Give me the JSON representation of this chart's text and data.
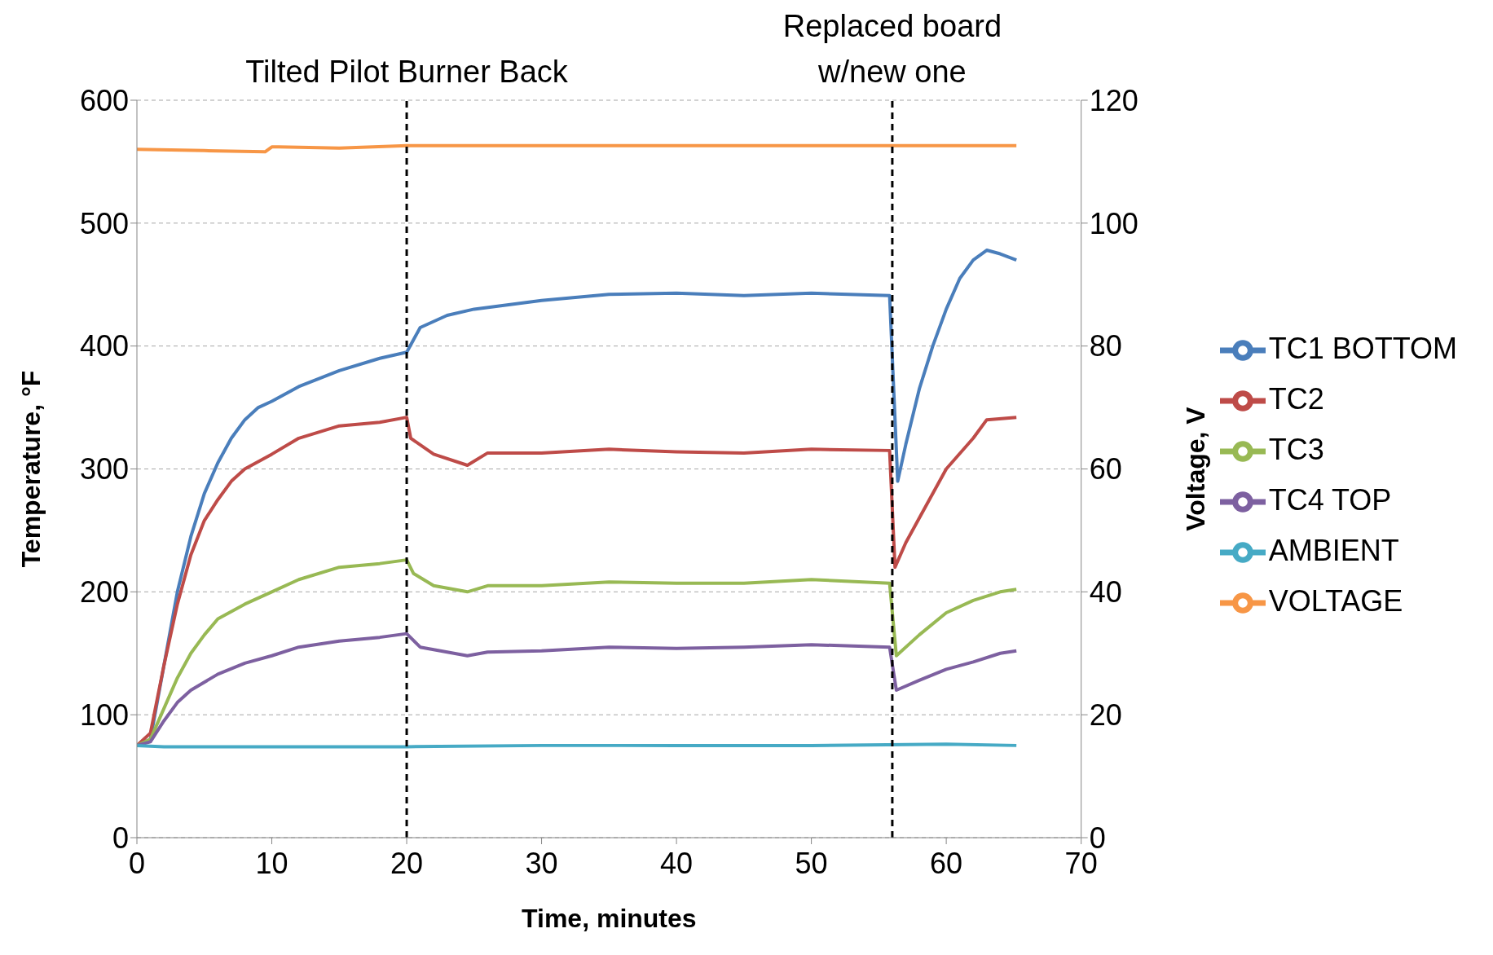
{
  "chart_data": {
    "type": "line",
    "xlabel": "Time, minutes",
    "ylabel": "Temperature, °F",
    "y2label": "Voltage, V",
    "xlim": [
      0,
      70
    ],
    "xticks": [
      0,
      10,
      20,
      30,
      40,
      50,
      60,
      70
    ],
    "ylim": [
      0,
      600
    ],
    "yticks": [
      0,
      100,
      200,
      300,
      400,
      500,
      600
    ],
    "y2lim": [
      0,
      120
    ],
    "y2ticks": [
      0,
      20,
      40,
      60,
      80,
      100,
      120
    ],
    "grid": "y",
    "legend": "right",
    "ref_lines": [
      {
        "axis": "x",
        "value": 20,
        "label": "Tilted Pilot Burner Back",
        "color": "#000000",
        "line_style": "dashed"
      },
      {
        "axis": "x",
        "value": 56,
        "label": "Replaced board w/new one",
        "color": "#000000",
        "line_style": "dashed"
      }
    ],
    "series": [
      {
        "name": "TC1 BOTTOM",
        "color": "#4a7ebb",
        "x": [
          0,
          1,
          2,
          3,
          4,
          5,
          6,
          7,
          8,
          9,
          10,
          12,
          15,
          18,
          20,
          21,
          23,
          25,
          30,
          35,
          40,
          45,
          50,
          55.8,
          56.4,
          57,
          58,
          59,
          60,
          61,
          62,
          63,
          64,
          65.2
        ],
        "values": [
          75,
          80,
          140,
          200,
          245,
          280,
          305,
          325,
          340,
          350,
          355,
          367,
          380,
          390,
          395,
          415,
          425,
          430,
          437,
          442,
          443,
          441,
          443,
          441,
          290,
          320,
          365,
          400,
          430,
          455,
          470,
          478,
          475,
          470
        ]
      },
      {
        "name": "TC2",
        "color": "#be4b48",
        "x": [
          0,
          1,
          2,
          3,
          4,
          5,
          6,
          7,
          8,
          10,
          12,
          15,
          18,
          20,
          20.3,
          22,
          24.5,
          26,
          30,
          35,
          40,
          45,
          50,
          55.8,
          56.2,
          57,
          58,
          60,
          62,
          63,
          65.2
        ],
        "values": [
          75,
          85,
          140,
          190,
          230,
          258,
          275,
          290,
          300,
          312,
          325,
          335,
          338,
          342,
          325,
          312,
          303,
          313,
          313,
          316,
          314,
          313,
          316,
          315,
          220,
          240,
          260,
          300,
          325,
          340,
          342
        ]
      },
      {
        "name": "TC3",
        "color": "#98b954",
        "x": [
          0,
          1,
          2,
          3,
          4,
          5,
          6,
          8,
          10,
          12,
          15,
          18,
          20,
          20.5,
          22,
          24.5,
          26,
          30,
          35,
          40,
          45,
          50,
          55.8,
          56.3,
          58,
          60,
          62,
          64,
          65.2
        ],
        "values": [
          75,
          80,
          105,
          130,
          150,
          165,
          178,
          190,
          200,
          210,
          220,
          223,
          226,
          215,
          205,
          200,
          205,
          205,
          208,
          207,
          207,
          210,
          207,
          148,
          165,
          183,
          193,
          200,
          202
        ]
      },
      {
        "name": "TC4 TOP",
        "color": "#7d60a0",
        "x": [
          0,
          1,
          2,
          3,
          4,
          6,
          8,
          10,
          12,
          15,
          18,
          20,
          21,
          24.5,
          26,
          30,
          35,
          40,
          45,
          50,
          55.8,
          56.3,
          58,
          60,
          62,
          64,
          65.2
        ],
        "values": [
          75,
          78,
          95,
          110,
          120,
          133,
          142,
          148,
          155,
          160,
          163,
          166,
          155,
          148,
          151,
          152,
          155,
          154,
          155,
          157,
          155,
          120,
          128,
          137,
          143,
          150,
          152
        ]
      },
      {
        "name": "AMBIENT",
        "color": "#46aac5",
        "x": [
          0,
          2,
          10,
          20,
          30,
          40,
          50,
          60,
          65.2
        ],
        "values": [
          75,
          74,
          74,
          74,
          75,
          75,
          75,
          76,
          75
        ]
      },
      {
        "name": "VOLTAGE",
        "color": "#f79646",
        "axis": "y2",
        "x": [
          0,
          5,
          9.5,
          10,
          10.5,
          15,
          20,
          30,
          40,
          50,
          56,
          60,
          65.2
        ],
        "values": [
          112,
          111.8,
          111.6,
          112.4,
          112.4,
          112.2,
          112.6,
          112.6,
          112.6,
          112.6,
          112.6,
          112.6,
          112.6
        ]
      }
    ]
  }
}
